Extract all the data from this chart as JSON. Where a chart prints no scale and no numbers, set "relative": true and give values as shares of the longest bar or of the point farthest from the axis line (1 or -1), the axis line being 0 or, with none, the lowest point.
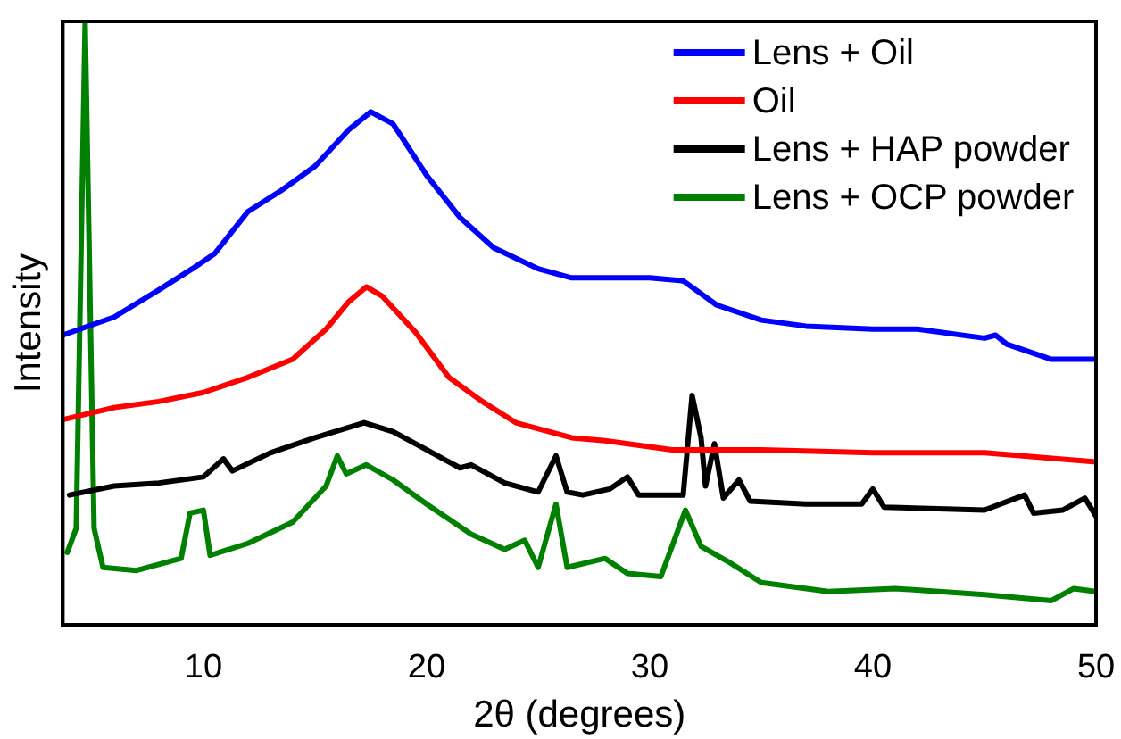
{
  "chart_data": {
    "type": "line",
    "xlabel": "2θ (degrees)",
    "ylabel": "Intensity",
    "relative": true,
    "xlim": [
      3.7,
      50
    ],
    "xticks": [
      10,
      20,
      30,
      40,
      50
    ],
    "grid": false,
    "legend": "top right",
    "marker": "none",
    "line_style": "solid",
    "series": [
      {
        "name": "Lens + Oil",
        "color": "#0000ff",
        "x": [
          3.7,
          6,
          8,
          9.5,
          10.5,
          12,
          13.5,
          15,
          16.5,
          17.5,
          18.5,
          20,
          21.5,
          23,
          25,
          26.5,
          28,
          30,
          31.5,
          33,
          35,
          37,
          40,
          42,
          45,
          45.5,
          46,
          48,
          50
        ],
        "values": [
          0.48,
          0.51,
          0.555,
          0.59,
          0.615,
          0.685,
          0.72,
          0.76,
          0.82,
          0.85,
          0.83,
          0.745,
          0.675,
          0.625,
          0.59,
          0.575,
          0.575,
          0.575,
          0.57,
          0.53,
          0.505,
          0.495,
          0.49,
          0.49,
          0.475,
          0.48,
          0.465,
          0.44,
          0.44
        ]
      },
      {
        "name": "Oil",
        "color": "#ff0000",
        "x": [
          3.7,
          6,
          8,
          10,
          12,
          14,
          15.5,
          16.5,
          17.3,
          18,
          19.5,
          21,
          22.5,
          24,
          26.5,
          28,
          31,
          35,
          40,
          45,
          50
        ],
        "values": [
          0.34,
          0.36,
          0.37,
          0.385,
          0.41,
          0.44,
          0.49,
          0.535,
          0.56,
          0.545,
          0.485,
          0.41,
          0.37,
          0.335,
          0.31,
          0.305,
          0.29,
          0.29,
          0.285,
          0.285,
          0.27
        ]
      },
      {
        "name": "Lens + HAP powder",
        "color": "#000000",
        "x": [
          4,
          6,
          8,
          10,
          10.9,
          11.3,
          13,
          15,
          17.2,
          18.5,
          20,
          21.5,
          22,
          23.5,
          25,
          25.8,
          26.3,
          27,
          28.2,
          29,
          29.5,
          31.5,
          31.9,
          32.3,
          32.5,
          32.9,
          33.3,
          34,
          34.5,
          37,
          39.5,
          40,
          40.5,
          45,
          46.8,
          47.2,
          48.5,
          49.5,
          50
        ],
        "values": [
          0.215,
          0.23,
          0.235,
          0.245,
          0.275,
          0.255,
          0.285,
          0.31,
          0.335,
          0.32,
          0.29,
          0.26,
          0.265,
          0.235,
          0.22,
          0.28,
          0.22,
          0.215,
          0.225,
          0.245,
          0.215,
          0.215,
          0.38,
          0.31,
          0.23,
          0.3,
          0.21,
          0.24,
          0.205,
          0.2,
          0.2,
          0.225,
          0.195,
          0.19,
          0.215,
          0.185,
          0.19,
          0.21,
          0.18
        ]
      },
      {
        "name": "Lens + OCP powder",
        "color": "#008000",
        "x": [
          3.9,
          4.3,
          4.7,
          5.1,
          5.5,
          7,
          9,
          9.4,
          10,
          10.3,
          12,
          14,
          15.5,
          16,
          16.4,
          17.3,
          18.5,
          20,
          22,
          23.5,
          24.4,
          25,
          25.8,
          26.3,
          28,
          29,
          30.5,
          31.6,
          32.3,
          33.5,
          35,
          38,
          41,
          45,
          48,
          49,
          50
        ],
        "values": [
          0.12,
          0.16,
          1,
          0.16,
          0.095,
          0.09,
          0.11,
          0.185,
          0.19,
          0.115,
          0.135,
          0.17,
          0.23,
          0.28,
          0.25,
          0.265,
          0.24,
          0.2,
          0.15,
          0.125,
          0.14,
          0.095,
          0.2,
          0.095,
          0.11,
          0.085,
          0.08,
          0.19,
          0.13,
          0.105,
          0.07,
          0.055,
          0.06,
          0.05,
          0.04,
          0.06,
          0.055
        ]
      }
    ]
  }
}
